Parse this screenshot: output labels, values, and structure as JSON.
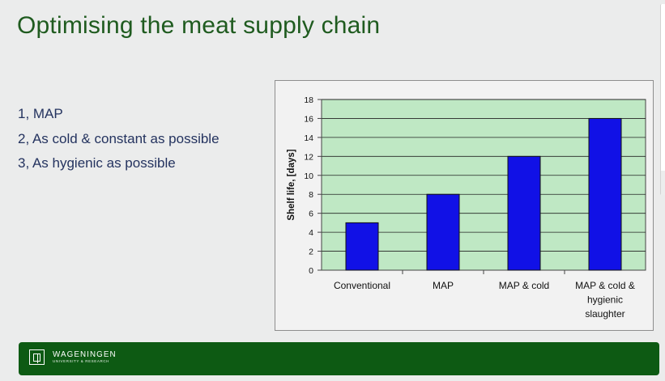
{
  "slide": {
    "title": "Optimising the meat supply chain",
    "bullets": [
      "1, MAP",
      "2, As cold & constant as possible",
      "3, As hygienic as possible"
    ]
  },
  "chart_data": {
    "type": "bar",
    "title": "",
    "xlabel": "",
    "ylabel": "Shelf life, [days]",
    "categories": [
      [
        "Conventional"
      ],
      [
        "MAP"
      ],
      [
        "MAP & cold"
      ],
      [
        "MAP & cold &",
        "hygienic",
        "slaughter"
      ]
    ],
    "values": [
      5,
      8,
      12,
      16
    ],
    "ylim": [
      0,
      18
    ],
    "yticks": [
      0,
      2,
      4,
      6,
      8,
      10,
      12,
      14,
      16,
      18
    ],
    "grid": true,
    "legend": "none",
    "colors": {
      "plot_background": "#bfe8c4",
      "bar_fill": "#1111e6",
      "bar_stroke": "#111111",
      "gridline": "#222222",
      "axis": "#444444",
      "tick_text": "#111111"
    }
  },
  "footer": {
    "brand_name": "WAGENINGEN",
    "brand_sub": "UNIVERSITY & RESEARCH",
    "logo_icon": "wageningen-logo-icon",
    "background": "#0d5a13"
  }
}
